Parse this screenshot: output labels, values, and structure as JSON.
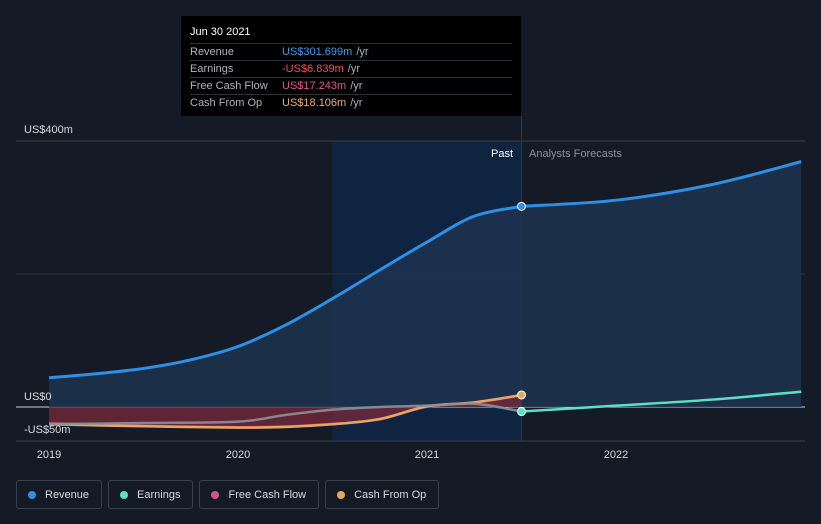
{
  "tooltip": {
    "date": "Jun 30 2021",
    "rows": [
      {
        "label": "Revenue",
        "value": "US$301.699m",
        "unit": "/yr",
        "color": "#3b9cf0"
      },
      {
        "label": "Earnings",
        "value": "-US$6.839m",
        "unit": "/yr",
        "color": "#ff4a4a"
      },
      {
        "label": "Free Cash Flow",
        "value": "US$17.243m",
        "unit": "/yr",
        "color": "#e0568e"
      },
      {
        "label": "Cash From Op",
        "value": "US$18.106m",
        "unit": "/yr",
        "color": "#f2b06b"
      }
    ]
  },
  "markers": {
    "past": "Past",
    "forecast": "Analysts Forecasts"
  },
  "legend": [
    {
      "label": "Revenue",
      "color": "#2e8fe5"
    },
    {
      "label": "Earnings",
      "color": "#5ce0c6"
    },
    {
      "label": "Free Cash Flow",
      "color": "#d3548a"
    },
    {
      "label": "Cash From Op",
      "color": "#e8a662"
    }
  ],
  "chart_data": {
    "type": "line",
    "y_unit_labels": [
      "US$400m",
      "US$0",
      "-US$50m"
    ],
    "x_ticks": [
      "2019",
      "2020",
      "2021",
      "2022"
    ],
    "ylim": [
      -50,
      400
    ],
    "xlim": [
      2019.0,
      2022.98
    ],
    "past_end": 2021.5,
    "highlight_start": 2020.5,
    "series": [
      {
        "name": "Revenue",
        "color": "#2e8fe5",
        "points": [
          [
            2019.0,
            44
          ],
          [
            2019.25,
            50
          ],
          [
            2019.5,
            58
          ],
          [
            2019.75,
            71
          ],
          [
            2020.0,
            91
          ],
          [
            2020.25,
            123
          ],
          [
            2020.5,
            163
          ],
          [
            2020.75,
            206
          ],
          [
            2021.0,
            248
          ],
          [
            2021.25,
            287
          ],
          [
            2021.5,
            301.7
          ]
        ],
        "forecast": [
          [
            2021.5,
            301.7
          ],
          [
            2022.0,
            311
          ],
          [
            2022.5,
            334
          ],
          [
            2022.98,
            369
          ]
        ]
      },
      {
        "name": "Earnings",
        "color": "#5ce0c6",
        "points": [
          [
            2019.0,
            -26
          ],
          [
            2019.5,
            -24
          ],
          [
            2020.0,
            -22
          ],
          [
            2020.25,
            -12
          ],
          [
            2020.5,
            -4
          ],
          [
            2020.75,
            0
          ],
          [
            2021.0,
            2
          ],
          [
            2021.25,
            5
          ],
          [
            2021.5,
            -6.839
          ]
        ],
        "forecast": [
          [
            2021.5,
            -6.839
          ],
          [
            2022.0,
            2
          ],
          [
            2022.5,
            11
          ],
          [
            2022.98,
            23
          ]
        ]
      },
      {
        "name": "Free Cash Flow",
        "color": "#d3548a",
        "points": [
          [
            2019.0,
            -24
          ],
          [
            2019.5,
            -28
          ],
          [
            2020.0,
            -30
          ],
          [
            2020.25,
            -29
          ],
          [
            2020.5,
            -25
          ],
          [
            2020.75,
            -19
          ],
          [
            2021.0,
            0
          ],
          [
            2021.25,
            6
          ],
          [
            2021.5,
            17.243
          ]
        ]
      },
      {
        "name": "Cash From Op",
        "color": "#e8a662",
        "points": [
          [
            2019.0,
            -26
          ],
          [
            2019.5,
            -29
          ],
          [
            2020.0,
            -31
          ],
          [
            2020.25,
            -30
          ],
          [
            2020.5,
            -26
          ],
          [
            2020.75,
            -18
          ],
          [
            2021.0,
            1
          ],
          [
            2021.25,
            7
          ],
          [
            2021.5,
            18.106
          ]
        ]
      }
    ]
  }
}
